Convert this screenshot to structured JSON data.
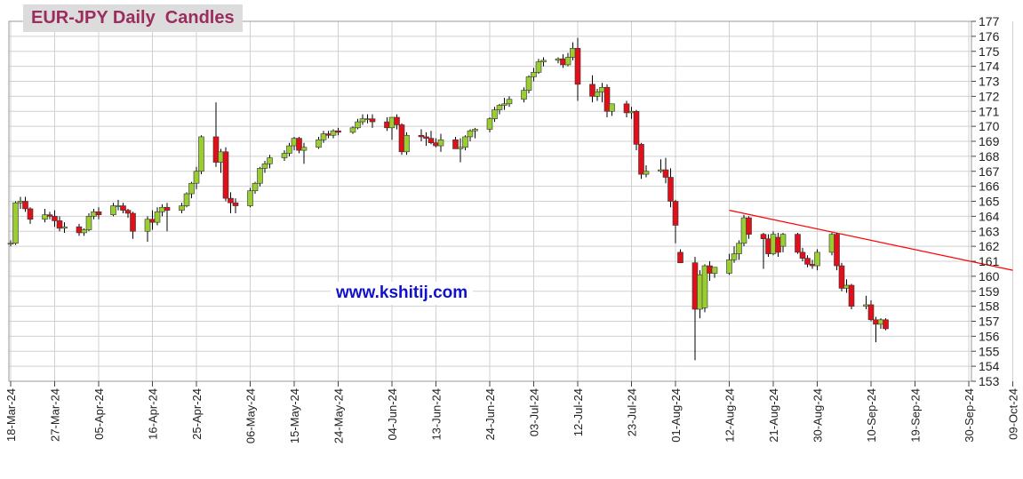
{
  "title": "EUR-JPY Daily  Candles",
  "watermark": "www.kshitij.com",
  "colors": {
    "up": "#9acd32",
    "down": "#e0101a",
    "wick": "#000000",
    "grid": "#d0d0d0",
    "trendline": "#ff0000",
    "title_bg": "#dcdcdc",
    "title_text": "#9b2c5e",
    "watermark_text": "#1111cc"
  },
  "chart_data": {
    "type": "candlestick",
    "title": "EUR-JPY Daily  Candles",
    "xlabel": "",
    "ylabel": "",
    "ylim": [
      153,
      177
    ],
    "yticks": [
      153,
      154,
      155,
      156,
      157,
      158,
      159,
      160,
      161,
      162,
      163,
      164,
      165,
      166,
      167,
      168,
      169,
      170,
      171,
      172,
      173,
      174,
      175,
      176,
      177
    ],
    "x_axis_labels": [
      "18-Mar-24",
      "27-Mar-24",
      "05-Apr-24",
      "16-Apr-24",
      "25-Apr-24",
      "06-May-24",
      "15-May-24",
      "24-May-24",
      "04-Jun-24",
      "13-Jun-24",
      "24-Jun-24",
      "03-Jul-24",
      "12-Jul-24",
      "23-Jul-24",
      "01-Aug-24",
      "12-Aug-24",
      "21-Aug-24",
      "30-Aug-24",
      "10-Sep-24",
      "19-Sep-24",
      "30-Sep-24",
      "09-Oct-24"
    ],
    "grid": true,
    "y_axis_side": "right",
    "candles": [
      {
        "date": "18-Mar-24",
        "o": 162.2,
        "h": 162.4,
        "l": 162.0,
        "c": 162.2
      },
      {
        "date": "19-Mar-24",
        "o": 162.2,
        "h": 165.0,
        "l": 162.1,
        "c": 164.9
      },
      {
        "date": "20-Mar-24",
        "o": 164.9,
        "h": 165.3,
        "l": 164.5,
        "c": 165.0
      },
      {
        "date": "21-Mar-24",
        "o": 165.0,
        "h": 165.3,
        "l": 164.3,
        "c": 164.5
      },
      {
        "date": "22-Mar-24",
        "o": 164.5,
        "h": 164.6,
        "l": 163.5,
        "c": 163.8
      },
      {
        "date": "25-Mar-24",
        "o": 163.8,
        "h": 164.5,
        "l": 163.6,
        "c": 164.1
      },
      {
        "date": "26-Mar-24",
        "o": 164.1,
        "h": 164.3,
        "l": 163.8,
        "c": 164.0
      },
      {
        "date": "27-Mar-24",
        "o": 164.0,
        "h": 164.4,
        "l": 163.3,
        "c": 163.7
      },
      {
        "date": "28-Mar-24",
        "o": 163.7,
        "h": 164.0,
        "l": 163.0,
        "c": 163.2
      },
      {
        "date": "29-Mar-24",
        "o": 163.2,
        "h": 163.6,
        "l": 162.9,
        "c": 163.3
      },
      {
        "date": "01-Apr-24",
        "o": 163.3,
        "h": 163.5,
        "l": 162.7,
        "c": 162.9
      },
      {
        "date": "02-Apr-24",
        "o": 162.9,
        "h": 163.2,
        "l": 162.7,
        "c": 163.1
      },
      {
        "date": "03-Apr-24",
        "o": 163.1,
        "h": 164.2,
        "l": 163.0,
        "c": 164.0
      },
      {
        "date": "04-Apr-24",
        "o": 164.0,
        "h": 164.5,
        "l": 163.8,
        "c": 164.3
      },
      {
        "date": "05-Apr-24",
        "o": 164.3,
        "h": 164.6,
        "l": 163.8,
        "c": 164.1
      },
      {
        "date": "08-Apr-24",
        "o": 164.1,
        "h": 164.9,
        "l": 164.0,
        "c": 164.7
      },
      {
        "date": "09-Apr-24",
        "o": 164.7,
        "h": 165.1,
        "l": 164.4,
        "c": 164.7
      },
      {
        "date": "10-Apr-24",
        "o": 164.7,
        "h": 164.9,
        "l": 164.2,
        "c": 164.4
      },
      {
        "date": "11-Apr-24",
        "o": 164.4,
        "h": 164.5,
        "l": 163.9,
        "c": 164.2
      },
      {
        "date": "12-Apr-24",
        "o": 164.2,
        "h": 164.3,
        "l": 162.5,
        "c": 163.0
      },
      {
        "date": "15-Apr-24",
        "o": 163.0,
        "h": 164.0,
        "l": 162.3,
        "c": 163.8
      },
      {
        "date": "16-Apr-24",
        "o": 163.8,
        "h": 164.4,
        "l": 163.1,
        "c": 163.6
      },
      {
        "date": "17-Apr-24",
        "o": 163.6,
        "h": 164.6,
        "l": 163.4,
        "c": 164.3
      },
      {
        "date": "18-Apr-24",
        "o": 164.3,
        "h": 164.8,
        "l": 164.0,
        "c": 164.6
      },
      {
        "date": "19-Apr-24",
        "o": 164.6,
        "h": 164.9,
        "l": 163.0,
        "c": 164.4
      },
      {
        "date": "22-Apr-24",
        "o": 164.4,
        "h": 164.9,
        "l": 164.2,
        "c": 164.7
      },
      {
        "date": "23-Apr-24",
        "o": 164.7,
        "h": 165.6,
        "l": 164.6,
        "c": 165.5
      },
      {
        "date": "24-Apr-24",
        "o": 165.5,
        "h": 166.3,
        "l": 165.2,
        "c": 166.2
      },
      {
        "date": "25-Apr-24",
        "o": 166.2,
        "h": 167.3,
        "l": 165.8,
        "c": 167.0
      },
      {
        "date": "26-Apr-24",
        "o": 167.0,
        "h": 169.4,
        "l": 166.8,
        "c": 169.3
      },
      {
        "date": "29-Apr-24",
        "o": 169.3,
        "h": 171.6,
        "l": 167.3,
        "c": 167.6
      },
      {
        "date": "30-Apr-24",
        "o": 167.6,
        "h": 168.5,
        "l": 166.9,
        "c": 168.3
      },
      {
        "date": "01-May-24",
        "o": 168.3,
        "h": 168.6,
        "l": 165.0,
        "c": 165.2
      },
      {
        "date": "02-May-24",
        "o": 165.2,
        "h": 165.6,
        "l": 164.2,
        "c": 164.9
      },
      {
        "date": "03-May-24",
        "o": 164.9,
        "h": 165.2,
        "l": 164.2,
        "c": 164.7
      },
      {
        "date": "06-May-24",
        "o": 164.7,
        "h": 165.9,
        "l": 164.6,
        "c": 165.7
      },
      {
        "date": "07-May-24",
        "o": 165.7,
        "h": 166.3,
        "l": 165.5,
        "c": 166.2
      },
      {
        "date": "08-May-24",
        "o": 166.2,
        "h": 167.3,
        "l": 166.0,
        "c": 167.2
      },
      {
        "date": "09-May-24",
        "o": 167.2,
        "h": 167.7,
        "l": 166.9,
        "c": 167.5
      },
      {
        "date": "10-May-24",
        "o": 167.5,
        "h": 168.1,
        "l": 167.2,
        "c": 167.9
      },
      {
        "date": "13-May-24",
        "o": 167.9,
        "h": 168.4,
        "l": 167.7,
        "c": 168.2
      },
      {
        "date": "14-May-24",
        "o": 168.2,
        "h": 168.9,
        "l": 168.0,
        "c": 168.7
      },
      {
        "date": "15-May-24",
        "o": 168.7,
        "h": 169.3,
        "l": 168.4,
        "c": 169.2
      },
      {
        "date": "16-May-24",
        "o": 169.2,
        "h": 169.3,
        "l": 168.2,
        "c": 168.4
      },
      {
        "date": "17-May-24",
        "o": 168.4,
        "h": 168.9,
        "l": 167.5,
        "c": 168.6
      },
      {
        "date": "20-May-24",
        "o": 168.6,
        "h": 169.3,
        "l": 168.5,
        "c": 169.1
      },
      {
        "date": "21-May-24",
        "o": 169.1,
        "h": 169.7,
        "l": 168.9,
        "c": 169.5
      },
      {
        "date": "22-May-24",
        "o": 169.5,
        "h": 169.7,
        "l": 169.2,
        "c": 169.4
      },
      {
        "date": "23-May-24",
        "o": 169.4,
        "h": 169.8,
        "l": 169.2,
        "c": 169.7
      },
      {
        "date": "24-May-24",
        "o": 169.7,
        "h": 169.9,
        "l": 169.4,
        "c": 169.6
      },
      {
        "date": "27-May-24",
        "o": 169.6,
        "h": 170.0,
        "l": 169.5,
        "c": 169.9
      },
      {
        "date": "28-May-24",
        "o": 169.9,
        "h": 170.5,
        "l": 169.8,
        "c": 170.3
      },
      {
        "date": "29-May-24",
        "o": 170.3,
        "h": 170.8,
        "l": 170.1,
        "c": 170.5
      },
      {
        "date": "30-May-24",
        "o": 170.5,
        "h": 170.8,
        "l": 170.2,
        "c": 170.5
      },
      {
        "date": "31-May-24",
        "o": 170.5,
        "h": 170.8,
        "l": 169.9,
        "c": 170.3
      },
      {
        "date": "03-Jun-24",
        "o": 170.3,
        "h": 170.6,
        "l": 169.7,
        "c": 169.9
      },
      {
        "date": "04-Jun-24",
        "o": 169.9,
        "h": 170.4,
        "l": 169.1,
        "c": 170.6
      },
      {
        "date": "05-Jun-24",
        "o": 170.6,
        "h": 170.8,
        "l": 169.8,
        "c": 170.1
      },
      {
        "date": "06-Jun-24",
        "o": 170.1,
        "h": 170.2,
        "l": 168.1,
        "c": 168.3
      },
      {
        "date": "07-Jun-24",
        "o": 168.3,
        "h": 169.6,
        "l": 168.1,
        "c": 169.4
      },
      {
        "date": "10-Jun-24",
        "o": 169.4,
        "h": 169.8,
        "l": 169.0,
        "c": 169.3
      },
      {
        "date": "11-Jun-24",
        "o": 169.3,
        "h": 169.6,
        "l": 168.7,
        "c": 169.2
      },
      {
        "date": "12-Jun-24",
        "o": 169.2,
        "h": 169.7,
        "l": 168.8,
        "c": 168.9
      },
      {
        "date": "13-Jun-24",
        "o": 168.9,
        "h": 169.2,
        "l": 168.6,
        "c": 168.7
      },
      {
        "date": "14-Jun-24",
        "o": 168.7,
        "h": 169.5,
        "l": 168.3,
        "c": 169.1
      },
      {
        "date": "17-Jun-24",
        "o": 169.1,
        "h": 169.3,
        "l": 168.5,
        "c": 168.5
      },
      {
        "date": "18-Jun-24",
        "o": 168.5,
        "h": 169.2,
        "l": 167.6,
        "c": 168.6
      },
      {
        "date": "19-Jun-24",
        "o": 168.6,
        "h": 169.4,
        "l": 168.4,
        "c": 169.3
      },
      {
        "date": "20-Jun-24",
        "o": 169.3,
        "h": 169.8,
        "l": 169.0,
        "c": 169.7
      },
      {
        "date": "21-Jun-24",
        "o": 169.7,
        "h": 169.9,
        "l": 169.2,
        "c": 169.8
      },
      {
        "date": "24-Jun-24",
        "o": 169.8,
        "h": 170.6,
        "l": 169.6,
        "c": 170.5
      },
      {
        "date": "25-Jun-24",
        "o": 170.5,
        "h": 171.3,
        "l": 170.3,
        "c": 171.1
      },
      {
        "date": "26-Jun-24",
        "o": 171.1,
        "h": 171.5,
        "l": 170.8,
        "c": 171.4
      },
      {
        "date": "27-Jun-24",
        "o": 171.4,
        "h": 171.9,
        "l": 171.1,
        "c": 171.5
      },
      {
        "date": "28-Jun-24",
        "o": 171.5,
        "h": 172.0,
        "l": 171.3,
        "c": 171.8
      },
      {
        "date": "01-Jul-24",
        "o": 171.8,
        "h": 172.6,
        "l": 171.6,
        "c": 172.4
      },
      {
        "date": "02-Jul-24",
        "o": 172.4,
        "h": 173.4,
        "l": 172.2,
        "c": 173.3
      },
      {
        "date": "03-Jul-24",
        "o": 173.3,
        "h": 173.9,
        "l": 173.0,
        "c": 173.6
      },
      {
        "date": "04-Jul-24",
        "o": 173.6,
        "h": 174.5,
        "l": 173.5,
        "c": 174.3
      },
      {
        "date": "05-Jul-24",
        "o": 174.3,
        "h": 174.6,
        "l": 174.0,
        "c": 174.4
      },
      {
        "date": "08-Jul-24",
        "o": 174.4,
        "h": 174.6,
        "l": 174.2,
        "c": 174.5
      },
      {
        "date": "09-Jul-24",
        "o": 174.5,
        "h": 174.8,
        "l": 173.9,
        "c": 174.1
      },
      {
        "date": "10-Jul-24",
        "o": 174.1,
        "h": 174.9,
        "l": 174.0,
        "c": 174.6
      },
      {
        "date": "11-Jul-24",
        "o": 174.6,
        "h": 175.6,
        "l": 174.4,
        "c": 175.2
      },
      {
        "date": "12-Jul-24",
        "o": 175.2,
        "h": 175.9,
        "l": 171.7,
        "c": 172.8
      },
      {
        "date": "15-Jul-24",
        "o": 172.8,
        "h": 173.4,
        "l": 171.6,
        "c": 172.0
      },
      {
        "date": "16-Jul-24",
        "o": 172.0,
        "h": 172.5,
        "l": 171.7,
        "c": 172.3
      },
      {
        "date": "17-Jul-24",
        "o": 172.3,
        "h": 172.9,
        "l": 171.6,
        "c": 172.6
      },
      {
        "date": "18-Jul-24",
        "o": 172.6,
        "h": 172.8,
        "l": 170.6,
        "c": 171.0
      },
      {
        "date": "19-Jul-24",
        "o": 171.0,
        "h": 171.5,
        "l": 170.7,
        "c": 171.5
      },
      {
        "date": "22-Jul-24",
        "o": 171.5,
        "h": 171.7,
        "l": 170.6,
        "c": 170.9
      },
      {
        "date": "23-Jul-24",
        "o": 170.9,
        "h": 171.3,
        "l": 170.5,
        "c": 171.0
      },
      {
        "date": "24-Jul-24",
        "o": 171.0,
        "h": 171.1,
        "l": 168.4,
        "c": 168.8
      },
      {
        "date": "25-Jul-24",
        "o": 168.8,
        "h": 168.9,
        "l": 166.5,
        "c": 166.8
      },
      {
        "date": "26-Jul-24",
        "o": 166.8,
        "h": 167.4,
        "l": 166.6,
        "c": 167.0
      },
      {
        "date": "29-Jul-24",
        "o": 167.0,
        "h": 167.8,
        "l": 166.9,
        "c": 167.1
      },
      {
        "date": "30-Jul-24",
        "o": 167.1,
        "h": 167.9,
        "l": 166.2,
        "c": 166.6
      },
      {
        "date": "31-Jul-24",
        "o": 166.6,
        "h": 167.2,
        "l": 164.6,
        "c": 165.0
      },
      {
        "date": "01-Aug-24",
        "o": 165.0,
        "h": 165.1,
        "l": 162.2,
        "c": 163.4
      },
      {
        "date": "02-Aug-24",
        "o": 161.6,
        "h": 161.8,
        "l": 160.9,
        "c": 160.9
      },
      {
        "date": "05-Aug-24",
        "o": 160.9,
        "h": 161.3,
        "l": 154.4,
        "c": 157.8
      },
      {
        "date": "06-Aug-24",
        "o": 157.8,
        "h": 160.4,
        "l": 157.2,
        "c": 160.1
      },
      {
        "date": "07-Aug-24",
        "o": 157.9,
        "h": 160.8,
        "l": 157.6,
        "c": 160.7
      },
      {
        "date": "08-Aug-24",
        "o": 160.7,
        "h": 161.0,
        "l": 159.7,
        "c": 160.2
      },
      {
        "date": "09-Aug-24",
        "o": 160.2,
        "h": 160.6,
        "l": 159.9,
        "c": 160.6
      },
      {
        "date": "12-Aug-24",
        "o": 160.2,
        "h": 161.5,
        "l": 160.1,
        "c": 161.1
      },
      {
        "date": "13-Aug-24",
        "o": 161.1,
        "h": 162.0,
        "l": 160.9,
        "c": 161.5
      },
      {
        "date": "14-Aug-24",
        "o": 161.5,
        "h": 162.4,
        "l": 161.1,
        "c": 162.2
      },
      {
        "date": "15-Aug-24",
        "o": 162.2,
        "h": 164.1,
        "l": 162.0,
        "c": 163.9
      },
      {
        "date": "16-Aug-24",
        "o": 163.9,
        "h": 164.0,
        "l": 162.5,
        "c": 162.8
      },
      {
        "date": "19-Aug-24",
        "o": 162.8,
        "h": 162.9,
        "l": 160.5,
        "c": 162.5
      },
      {
        "date": "20-Aug-24",
        "o": 162.5,
        "h": 162.8,
        "l": 161.3,
        "c": 161.5
      },
      {
        "date": "21-Aug-24",
        "o": 161.5,
        "h": 163.0,
        "l": 161.4,
        "c": 162.8
      },
      {
        "date": "22-Aug-24",
        "o": 162.6,
        "h": 162.9,
        "l": 161.3,
        "c": 161.6
      },
      {
        "date": "23-Aug-24",
        "o": 162.0,
        "h": 162.9,
        "l": 161.6,
        "c": 162.8
      },
      {
        "date": "26-Aug-24",
        "o": 162.8,
        "h": 162.9,
        "l": 161.5,
        "c": 161.6
      },
      {
        "date": "27-Aug-24",
        "o": 161.6,
        "h": 161.9,
        "l": 161.0,
        "c": 161.2
      },
      {
        "date": "28-Aug-24",
        "o": 161.2,
        "h": 161.4,
        "l": 160.6,
        "c": 160.8
      },
      {
        "date": "29-Aug-24",
        "o": 160.8,
        "h": 161.1,
        "l": 160.5,
        "c": 160.7
      },
      {
        "date": "30-Aug-24",
        "o": 160.7,
        "h": 161.8,
        "l": 160.4,
        "c": 161.6
      },
      {
        "date": "02-Sep-24",
        "o": 161.6,
        "h": 162.9,
        "l": 161.4,
        "c": 162.8
      },
      {
        "date": "03-Sep-24",
        "o": 162.8,
        "h": 162.9,
        "l": 160.4,
        "c": 160.7
      },
      {
        "date": "04-Sep-24",
        "o": 160.7,
        "h": 160.9,
        "l": 159.0,
        "c": 159.2
      },
      {
        "date": "05-Sep-24",
        "o": 159.2,
        "h": 159.8,
        "l": 158.9,
        "c": 159.4
      },
      {
        "date": "06-Sep-24",
        "o": 159.4,
        "h": 159.5,
        "l": 157.8,
        "c": 158.0
      },
      {
        "date": "09-Sep-24",
        "o": 158.0,
        "h": 158.7,
        "l": 157.8,
        "c": 158.1
      },
      {
        "date": "10-Sep-24",
        "o": 158.1,
        "h": 158.4,
        "l": 157.0,
        "c": 157.1
      },
      {
        "date": "11-Sep-24",
        "o": 157.1,
        "h": 157.3,
        "l": 155.6,
        "c": 156.8
      },
      {
        "date": "12-Sep-24",
        "o": 156.8,
        "h": 157.2,
        "l": 156.5,
        "c": 157.1
      },
      {
        "date": "13-Sep-24",
        "o": 157.1,
        "h": 157.2,
        "l": 156.4,
        "c": 156.5
      }
    ],
    "trendlines": [
      {
        "from": {
          "date": "12-Aug-24",
          "value": 164.4
        },
        "to": {
          "date": "09-Oct-24",
          "value": 160.4
        }
      }
    ]
  }
}
